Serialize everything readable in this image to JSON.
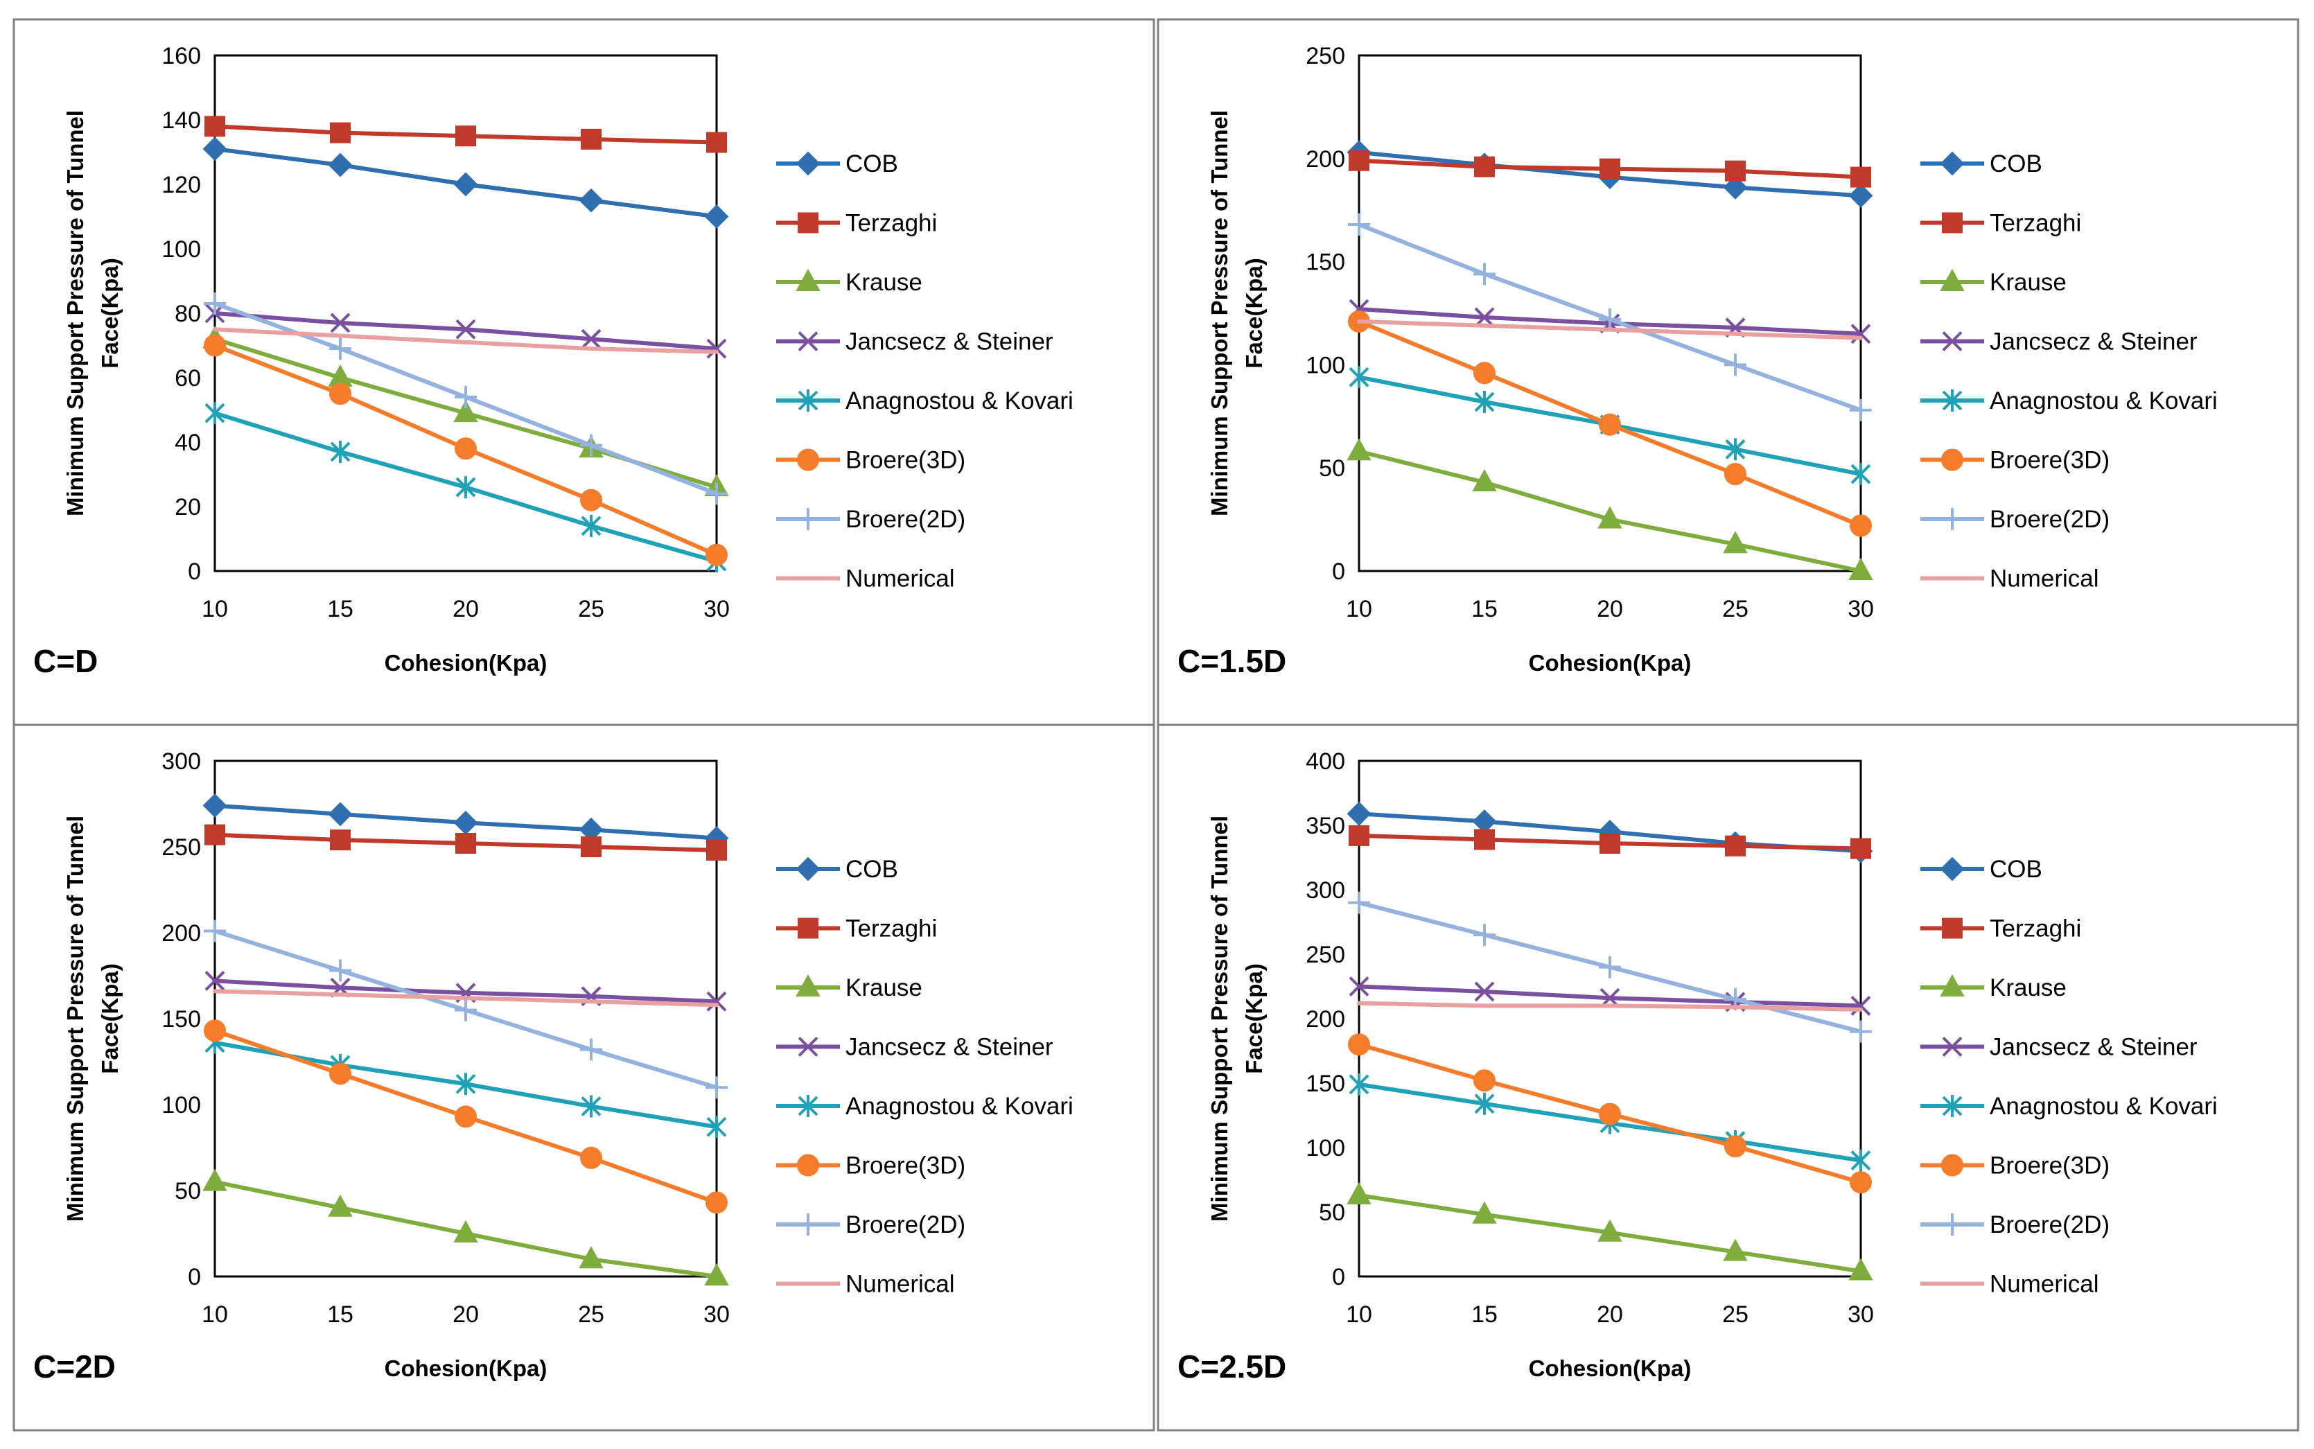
{
  "chart_data": [
    {
      "type": "line",
      "panel_label": "C=D",
      "xlabel": "Cohesion(Kpa)",
      "ylabel_lines": [
        "Minimum Support Pressure of Tunnel",
        "Face(Kpa)"
      ],
      "x": [
        10,
        15,
        20,
        25,
        30
      ],
      "x_ticks": [
        "10",
        "15",
        "20",
        "25",
        "30"
      ],
      "ylim": [
        0,
        160
      ],
      "y_ticks": [
        "0",
        "20",
        "40",
        "60",
        "80",
        "100",
        "120",
        "140",
        "160"
      ],
      "series": [
        {
          "name": "COB",
          "values": [
            131,
            126,
            120,
            115,
            110
          ]
        },
        {
          "name": "Terzaghi",
          "values": [
            138,
            136,
            135,
            134,
            133
          ]
        },
        {
          "name": "Krause",
          "values": [
            72,
            60,
            49,
            38,
            26
          ]
        },
        {
          "name": "Jancsecz & Steiner",
          "values": [
            80,
            77,
            75,
            72,
            69
          ]
        },
        {
          "name": "Anagnostou & Kovari",
          "values": [
            49,
            37,
            26,
            14,
            3
          ]
        },
        {
          "name": "Broere(3D)",
          "values": [
            70,
            55,
            38,
            22,
            5
          ]
        },
        {
          "name": "Broere(2D)",
          "values": [
            83,
            69,
            54,
            39,
            24
          ]
        },
        {
          "name": "Numerical",
          "values": [
            75,
            73,
            71,
            69,
            68
          ]
        }
      ]
    },
    {
      "type": "line",
      "panel_label": "C=1.5D",
      "xlabel": "Cohesion(Kpa)",
      "ylabel_lines": [
        "Minimum Support Pressure of Tunnel",
        "Face(Kpa)"
      ],
      "x": [
        10,
        15,
        20,
        25,
        30
      ],
      "x_ticks": [
        "10",
        "15",
        "20",
        "25",
        "30"
      ],
      "ylim": [
        0,
        250
      ],
      "y_ticks": [
        "0",
        "50",
        "100",
        "150",
        "200",
        "250"
      ],
      "series": [
        {
          "name": "COB",
          "values": [
            203,
            197,
            191,
            186,
            182
          ]
        },
        {
          "name": "Terzaghi",
          "values": [
            199,
            196,
            195,
            194,
            191
          ]
        },
        {
          "name": "Krause",
          "values": [
            58,
            43,
            25,
            13,
            0
          ]
        },
        {
          "name": "Jancsecz & Steiner",
          "values": [
            127,
            123,
            120,
            118,
            115
          ]
        },
        {
          "name": "Anagnostou & Kovari",
          "values": [
            94,
            82,
            71,
            59,
            47
          ]
        },
        {
          "name": "Broere(3D)",
          "values": [
            121,
            96,
            71,
            47,
            22
          ]
        },
        {
          "name": "Broere(2D)",
          "values": [
            168,
            144,
            122,
            100,
            78
          ]
        },
        {
          "name": "Numerical",
          "values": [
            121,
            119,
            117,
            115,
            113
          ]
        }
      ]
    },
    {
      "type": "line",
      "panel_label": "C=2D",
      "xlabel": "Cohesion(Kpa)",
      "ylabel_lines": [
        "Minimum Support Pressure of Tunnel",
        "Face(Kpa)"
      ],
      "x": [
        10,
        15,
        20,
        25,
        30
      ],
      "x_ticks": [
        "10",
        "15",
        "20",
        "25",
        "30"
      ],
      "ylim": [
        0,
        300
      ],
      "y_ticks": [
        "0",
        "50",
        "100",
        "150",
        "200",
        "250",
        "300"
      ],
      "series": [
        {
          "name": "COB",
          "values": [
            274,
            269,
            264,
            260,
            255
          ]
        },
        {
          "name": "Terzaghi",
          "values": [
            257,
            254,
            252,
            250,
            248
          ]
        },
        {
          "name": "Krause",
          "values": [
            55,
            40,
            25,
            10,
            0
          ]
        },
        {
          "name": "Jancsecz & Steiner",
          "values": [
            172,
            168,
            165,
            163,
            160
          ]
        },
        {
          "name": "Anagnostou & Kovari",
          "values": [
            136,
            123,
            112,
            99,
            87
          ]
        },
        {
          "name": "Broere(3D)",
          "values": [
            143,
            118,
            93,
            69,
            43
          ]
        },
        {
          "name": "Broere(2D)",
          "values": [
            201,
            178,
            155,
            132,
            110
          ]
        },
        {
          "name": "Numerical",
          "values": [
            166,
            164,
            162,
            160,
            158
          ]
        }
      ]
    },
    {
      "type": "line",
      "panel_label": "C=2.5D",
      "xlabel": "Cohesion(Kpa)",
      "ylabel_lines": [
        "Minimum Support Pressure of Tunnel",
        "Face(Kpa)"
      ],
      "x": [
        10,
        15,
        20,
        25,
        30
      ],
      "x_ticks": [
        "10",
        "15",
        "20",
        "25",
        "30"
      ],
      "ylim": [
        0,
        400
      ],
      "y_ticks": [
        "0",
        "50",
        "100",
        "150",
        "200",
        "250",
        "300",
        "350",
        "400"
      ],
      "series": [
        {
          "name": "COB",
          "values": [
            359,
            353,
            345,
            336,
            330
          ]
        },
        {
          "name": "Terzaghi",
          "values": [
            342,
            339,
            336,
            334,
            332
          ]
        },
        {
          "name": "Krause",
          "values": [
            63,
            48,
            34,
            19,
            4
          ]
        },
        {
          "name": "Jancsecz & Steiner",
          "values": [
            225,
            221,
            216,
            213,
            210
          ]
        },
        {
          "name": "Anagnostou & Kovari",
          "values": [
            149,
            134,
            119,
            105,
            90
          ]
        },
        {
          "name": "Broere(3D)",
          "values": [
            180,
            152,
            126,
            101,
            73
          ]
        },
        {
          "name": "Broere(2D)",
          "values": [
            290,
            265,
            240,
            215,
            190
          ]
        },
        {
          "name": "Numerical",
          "values": [
            212,
            210,
            210,
            209,
            207
          ]
        }
      ]
    }
  ],
  "series_style": [
    {
      "name": "COB",
      "color": "#2f6fb0",
      "marker": "diamond"
    },
    {
      "name": "Terzaghi",
      "color": "#c0392b",
      "marker": "square"
    },
    {
      "name": "Krause",
      "color": "#7fad3d",
      "marker": "triangle"
    },
    {
      "name": "Jancsecz & Steiner",
      "color": "#7b4fa0",
      "marker": "x"
    },
    {
      "name": "Anagnostou & Kovari",
      "color": "#1fa1b8",
      "marker": "asterisk"
    },
    {
      "name": "Broere(3D)",
      "color": "#f47c2a",
      "marker": "circle"
    },
    {
      "name": "Broere(2D)",
      "color": "#93b2de",
      "marker": "plus"
    },
    {
      "name": "Numerical",
      "color": "#e8a0a0",
      "marker": "none"
    }
  ]
}
